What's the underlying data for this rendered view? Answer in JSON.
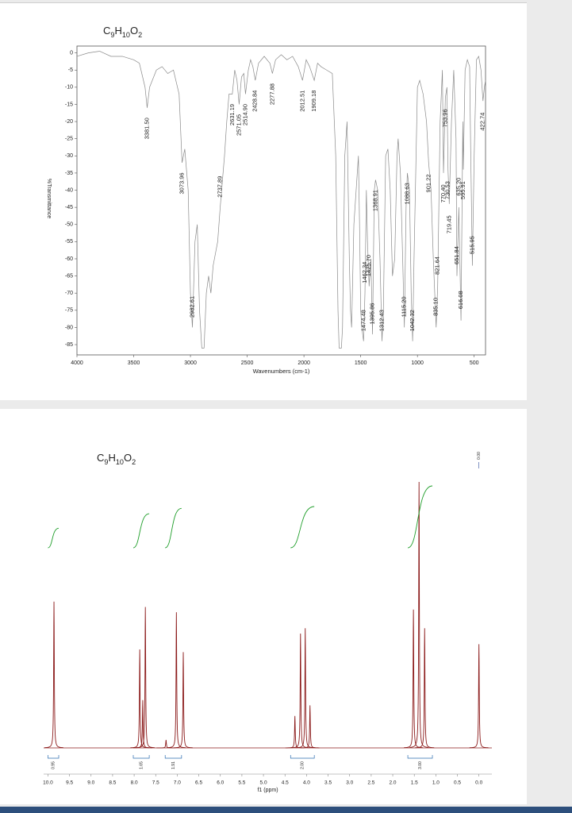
{
  "chart_data": [
    {
      "type": "line",
      "title": "C9H10O2",
      "x": [
        4000,
        3900,
        3800,
        3700,
        3600,
        3500,
        3450,
        3400,
        3381.5,
        3360,
        3300,
        3250,
        3200,
        3150,
        3100,
        3073.96,
        3050,
        3020,
        3000,
        2982.61,
        2960,
        2940,
        2920,
        2900,
        2880,
        2860,
        2840,
        2820,
        2800,
        2760,
        2737.89,
        2700,
        2680,
        2660,
        2631.19,
        2610,
        2590,
        2571.05,
        2550,
        2530,
        2514.9,
        2490,
        2470,
        2450,
        2428.84,
        2400,
        2350,
        2300,
        2277.88,
        2250,
        2200,
        2150,
        2100,
        2050,
        2012.51,
        1980,
        1950,
        1909.18,
        1880,
        1850,
        1800,
        1750,
        1720,
        1700,
        1690,
        1670,
        1660,
        1640,
        1620,
        1600,
        1590,
        1580,
        1560,
        1540,
        1520,
        1510,
        1500,
        1490,
        1474.48,
        1462.34,
        1450,
        1440,
        1425.7,
        1410,
        1395.86,
        1380,
        1368.91,
        1350,
        1330,
        1312.43,
        1300,
        1280,
        1260,
        1240,
        1220,
        1200,
        1180,
        1170,
        1150,
        1130,
        1115.2,
        1100,
        1088.63,
        1070,
        1055,
        1042.32,
        1030,
        1000,
        980,
        950,
        920,
        901.22,
        880,
        860,
        835.1,
        821.64,
        800,
        780,
        770.4,
        753.96,
        740,
        730.53,
        719.45,
        700,
        680,
        660,
        651.84,
        635.2,
        616.08,
        600,
        595.91,
        580,
        560,
        540,
        530,
        515.95,
        500,
        480,
        460,
        440,
        422.74,
        410,
        400
      ],
      "values": [
        -1,
        0,
        0.5,
        -1,
        -1,
        -2,
        -3,
        -10,
        -16,
        -10,
        -5,
        -4,
        -6,
        -5,
        -12,
        -32,
        -28,
        -40,
        -70,
        -80,
        -55,
        -50,
        -75,
        -86,
        -86,
        -70,
        -65,
        -70,
        -62,
        -55,
        -45,
        -30,
        -20,
        -12,
        -12,
        -5,
        -8,
        -15,
        -7,
        -6,
        -12,
        -5,
        -2,
        -4,
        -8,
        -3,
        -1,
        -3,
        -6,
        -2,
        -0.5,
        -2,
        -1,
        -4,
        -8,
        -2,
        -4,
        -8,
        -3,
        -4,
        -5,
        -6,
        -30,
        -75,
        -86,
        -86,
        -80,
        -30,
        -20,
        -60,
        -75,
        -80,
        -50,
        -40,
        -30,
        -50,
        -75,
        -80,
        -84,
        -70,
        -40,
        -55,
        -68,
        -60,
        -82,
        -40,
        -37,
        -40,
        -60,
        -84,
        -75,
        -30,
        -28,
        -40,
        -65,
        -60,
        -30,
        -25,
        -35,
        -60,
        -80,
        -45,
        -35,
        -40,
        -70,
        -84,
        -60,
        -10,
        -8,
        -12,
        -20,
        -32,
        -40,
        -60,
        -80,
        -68,
        -20,
        -5,
        -35,
        -13,
        -10,
        -34,
        -44,
        -20,
        -5,
        -25,
        -65,
        -45,
        -78,
        -20,
        -34,
        -5,
        -2,
        -4,
        -30,
        -62,
        -30,
        -2,
        -1,
        -5,
        -14,
        -10,
        -8
      ],
      "color": "#8a8a8a",
      "xlim": [
        4000,
        400
      ],
      "xticks": [
        4000,
        3500,
        3000,
        2500,
        2000,
        1500,
        1000,
        500
      ],
      "ylim": [
        -88,
        2
      ],
      "yticks": [
        0,
        -5,
        -10,
        -15,
        -20,
        -25,
        -30,
        -35,
        -40,
        -45,
        -50,
        -55,
        -60,
        -65,
        -70,
        -75,
        -80,
        -85
      ],
      "xlabel": "Wavenumbers (cm-1)",
      "ylabel": "%Transmittance",
      "peak_labels": [
        {
          "x": 3381.5,
          "label": "3381.50"
        },
        {
          "x": 3073.96,
          "label": "3073.96"
        },
        {
          "x": 2982.61,
          "label": "2982.61"
        },
        {
          "x": 2737.89,
          "label": "2737.89"
        },
        {
          "x": 2631.19,
          "label": "2631.19"
        },
        {
          "x": 2571.05,
          "label": "2571.05"
        },
        {
          "x": 2514.9,
          "label": "2514.90"
        },
        {
          "x": 2428.84,
          "label": "2428.84"
        },
        {
          "x": 2277.88,
          "label": "2277.88"
        },
        {
          "x": 2012.51,
          "label": "2012.51"
        },
        {
          "x": 1909.18,
          "label": "1909.18"
        },
        {
          "x": 1474.48,
          "label": "1474.48"
        },
        {
          "x": 1462.34,
          "label": "1462.34"
        },
        {
          "x": 1425.7,
          "label": "1425.70"
        },
        {
          "x": 1395.86,
          "label": "1395.86"
        },
        {
          "x": 1368.91,
          "label": "1368.91"
        },
        {
          "x": 1312.43,
          "label": "1312.43"
        },
        {
          "x": 1115.2,
          "label": "1115.20"
        },
        {
          "x": 1088.63,
          "label": "1088.63"
        },
        {
          "x": 1042.32,
          "label": "1042.32"
        },
        {
          "x": 901.22,
          "label": "901.22"
        },
        {
          "x": 835.1,
          "label": "835.10"
        },
        {
          "x": 821.64,
          "label": "821.64"
        },
        {
          "x": 770.4,
          "label": "770.40"
        },
        {
          "x": 753.96,
          "label": "753.96"
        },
        {
          "x": 730.53,
          "label": "730.53"
        },
        {
          "x": 719.45,
          "label": "719.45"
        },
        {
          "x": 651.84,
          "label": "651.84"
        },
        {
          "x": 635.2,
          "label": "635.20"
        },
        {
          "x": 616.08,
          "label": "616.08"
        },
        {
          "x": 595.91,
          "label": "595.91"
        },
        {
          "x": 515.95,
          "label": "515.95"
        },
        {
          "x": 422.74,
          "label": "422.74"
        }
      ]
    },
    {
      "type": "spectrum",
      "title": "C9H10O2",
      "peaks": {
        "x": [
          9.86,
          7.87,
          7.8,
          7.74,
          7.26,
          7.02,
          6.86,
          4.27,
          4.14,
          4.03,
          3.92,
          1.52,
          1.39,
          1.26,
          0
        ],
        "values": [
          0.55,
          0.37,
          0.18,
          0.53,
          0.03,
          0.51,
          0.36,
          0.12,
          0.43,
          0.45,
          0.16,
          0.52,
          1,
          0.45,
          0.39
        ]
      },
      "color": "#8b1a1a",
      "xlim": [
        10.1,
        -0.3
      ],
      "xticks": [
        {
          "value": 10,
          "label": "10.0"
        },
        9.5,
        {
          "value": 9,
          "label": "9.0"
        },
        8.5,
        {
          "value": 8,
          "label": "8.0"
        },
        7.5,
        {
          "value": 7,
          "label": "7.0"
        },
        6.5,
        {
          "value": 6,
          "label": "6.0"
        },
        5.5,
        {
          "value": 5,
          "label": "5.0"
        },
        4.5,
        {
          "value": 4,
          "label": "4.0"
        },
        3.5,
        {
          "value": 3,
          "label": "3.0"
        },
        2.5,
        {
          "value": 2,
          "label": "2.0"
        },
        1.5,
        {
          "value": 1,
          "label": "1.0"
        },
        0.5,
        {
          "value": 0,
          "label": "0.0"
        }
      ],
      "ylim": [
        0,
        1
      ],
      "xlabel": "f1 (ppm)",
      "integrals": {
        "ranges": [
          [
            10.0,
            9.75
          ],
          [
            8.02,
            7.65
          ],
          [
            7.28,
            6.9
          ],
          [
            4.37,
            3.82
          ],
          [
            1.65,
            1.08
          ]
        ],
        "values": [
          0.95,
          1.65,
          1.91,
          2,
          3
        ],
        "value_labels": [
          "0.95",
          "1.65",
          "1.91",
          "2.00",
          "3.00"
        ]
      },
      "peak_labels": [
        {
          "x": 0,
          "label": "0.00"
        }
      ]
    }
  ]
}
